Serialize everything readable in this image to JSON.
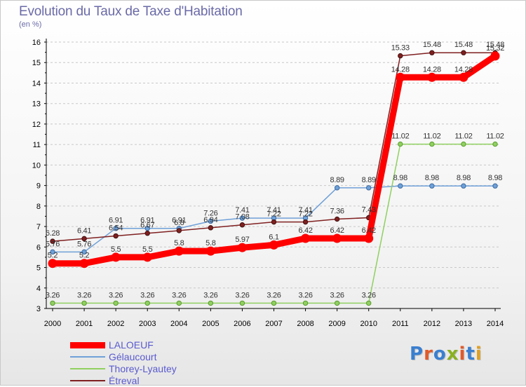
{
  "title": "Evolution du Taux de Taxe d'Habitation",
  "unit": "(en %)",
  "brand": "Proxiti",
  "colors": {
    "grid": "#c8c8c8",
    "axis": "#000000",
    "title": "#6a6aa8",
    "legend_text": "#5a5acf",
    "brand_letters": [
      "#3a7fd0",
      "#e05a2a",
      "#3a7fd0",
      "#8ab020",
      "#e05a2a",
      "#3a7fd0",
      "#e0a020"
    ]
  },
  "chart_data": {
    "type": "line",
    "title": "Evolution du Taux de Taxe d'Habitation",
    "ylabel": "(en %)",
    "xlabel": "",
    "x": [
      "2000",
      "2001",
      "2002",
      "2003",
      "2004",
      "2005",
      "2006",
      "2007",
      "2008",
      "2009",
      "2010",
      "2011",
      "2012",
      "2013",
      "2014"
    ],
    "ylim": [
      3,
      16
    ],
    "yticks": [
      3,
      4,
      5,
      6,
      7,
      8,
      9,
      10,
      11,
      12,
      13,
      14,
      15,
      16
    ],
    "grid": "horizontal",
    "legend_position": "bottom-left",
    "series": [
      {
        "name": "LALOEUF",
        "color": "#ff0000",
        "values": [
          5.2,
          5.2,
          5.5,
          5.5,
          5.8,
          5.8,
          5.97,
          6.1,
          6.42,
          6.42,
          6.42,
          14.28,
          14.28,
          14.28,
          15.32
        ],
        "labels": [
          "5.2",
          "5.2",
          "5.5",
          "5.5",
          "5.8",
          "5.8",
          "5.97",
          "6.1",
          "6.42",
          "6.42",
          "6.42",
          "14.28",
          "14.28",
          "14.28",
          "15.32"
        ]
      },
      {
        "name": "Gélaucourt",
        "color": "#6fa0d8",
        "values": [
          5.76,
          5.76,
          6.91,
          6.91,
          6.91,
          7.26,
          7.41,
          7.41,
          7.41,
          8.89,
          8.89,
          8.98,
          8.98,
          8.98,
          8.98
        ],
        "labels": [
          "5.76",
          "5.76",
          "6.91",
          "6.91",
          "6.91",
          "7.26",
          "7.41",
          "7.41",
          "7.41",
          "8.89",
          "8.89",
          "8.98",
          "8.98",
          "8.98",
          "8.98"
        ]
      },
      {
        "name": "Thorey-Lyautey",
        "color": "#90d060",
        "values": [
          3.26,
          3.26,
          3.26,
          3.26,
          3.26,
          3.26,
          3.26,
          3.26,
          3.26,
          3.26,
          3.26,
          11.02,
          11.02,
          11.02,
          11.02
        ],
        "labels": [
          "3.26",
          "3.26",
          "3.26",
          "3.26",
          "3.26",
          "3.26",
          "3.26",
          "3.26",
          "3.26",
          "3.26",
          "3.26",
          "11.02",
          "11.02",
          "11.02",
          "11.02"
        ]
      },
      {
        "name": "Étreval",
        "color": "#802020",
        "values": [
          6.28,
          6.41,
          6.54,
          6.67,
          6.8,
          6.94,
          7.08,
          7.22,
          7.22,
          7.36,
          7.43,
          15.33,
          15.48,
          15.48,
          15.48
        ],
        "labels": [
          "6.28",
          "6.41",
          "6.54",
          "6.67",
          "6.8",
          "6.94",
          "7.08",
          "7.22",
          "7.22",
          "7.36",
          "7.43",
          "15.33",
          "15.48",
          "15.48",
          "15.48"
        ]
      }
    ]
  }
}
